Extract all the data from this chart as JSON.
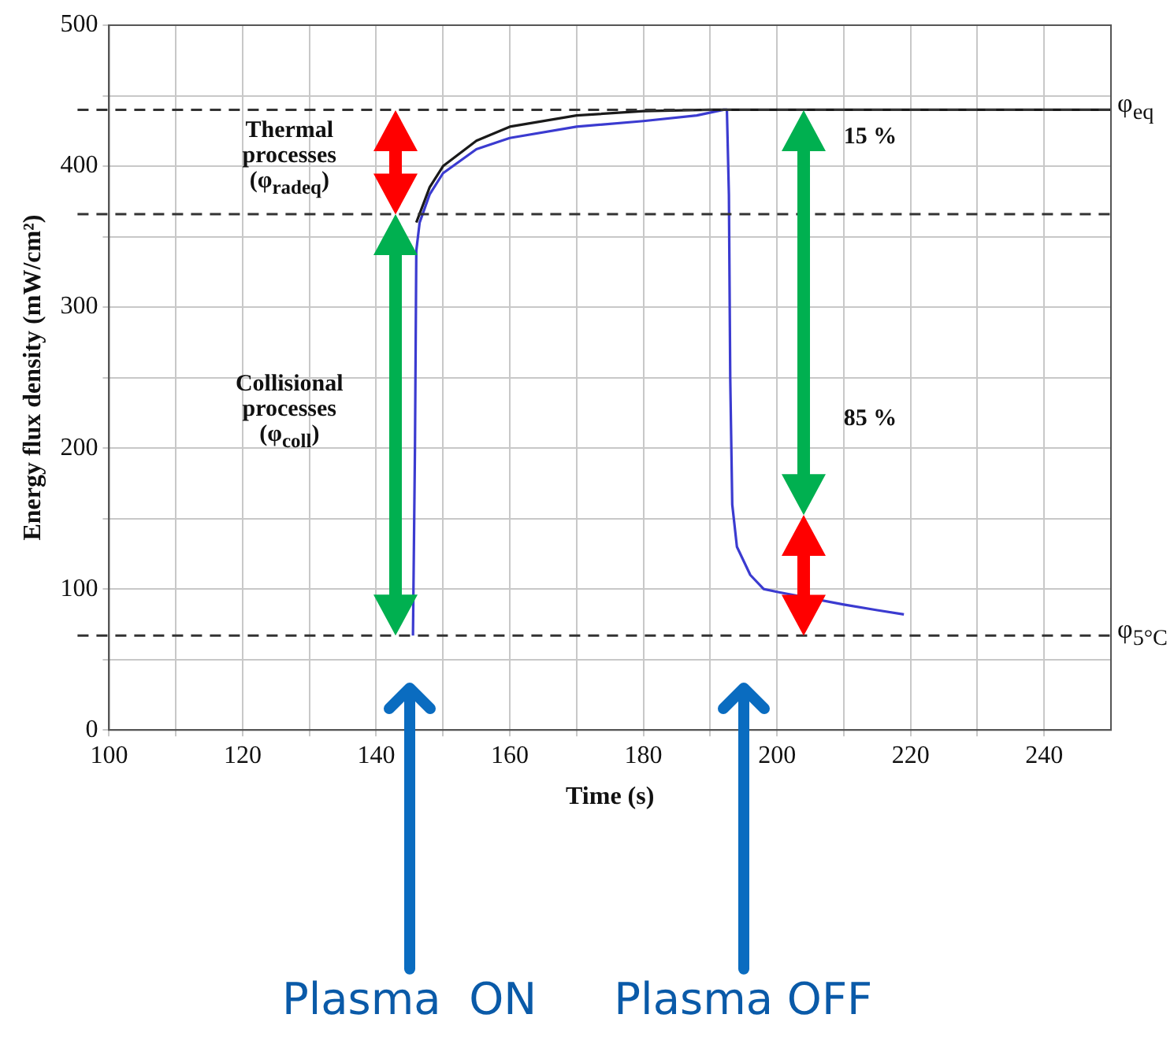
{
  "chart_data": {
    "type": "line",
    "xlabel": "Time (s)",
    "ylabel": "Energy flux density (mW/cm²)",
    "xlim": [
      100,
      250
    ],
    "ylim": [
      0,
      500
    ],
    "xticks": [
      100,
      {
        "value": 110,
        "label": null
      },
      120,
      {
        "value": 130,
        "label": null
      },
      140,
      {
        "value": 150,
        "label": null
      },
      160,
      {
        "value": 170,
        "label": null
      },
      180,
      {
        "value": 190,
        "label": null
      },
      200,
      {
        "value": 210,
        "label": null
      },
      220,
      {
        "value": 230,
        "label": null
      },
      240
    ],
    "yticks": [
      0,
      {
        "value": 50,
        "label": null
      },
      100,
      {
        "value": 150,
        "label": null
      },
      200,
      {
        "value": 250,
        "label": null
      },
      300,
      {
        "value": 350,
        "label": null
      },
      400,
      {
        "value": 450,
        "label": null
      },
      500
    ],
    "grid": true,
    "legend": false,
    "marker": "none",
    "line_style": "solid",
    "series": [
      {
        "color": "#1a1a1a",
        "x": [
          146,
          148,
          150,
          155,
          160,
          170,
          180,
          190,
          250
        ],
        "values": [
          360,
          385,
          400,
          418,
          428,
          436,
          439,
          440,
          440
        ]
      },
      {
        "color": "#3b3bd0",
        "x": [
          145.5,
          145.8,
          146,
          146.5,
          148,
          150,
          155,
          160,
          170,
          180,
          188,
          192,
          192.5,
          192.8,
          193,
          193.3,
          194,
          196,
          198,
          200,
          210,
          215,
          219
        ],
        "values": [
          67,
          200,
          340,
          360,
          380,
          395,
          412,
          420,
          428,
          432,
          436,
          440,
          440,
          380,
          250,
          160,
          130,
          110,
          100,
          98,
          89,
          85,
          82
        ]
      }
    ],
    "ref_lines": [
      {
        "axis": "y",
        "value": 440,
        "label": "φ$_{eq}$",
        "line_style": "dashed",
        "color": "#333333"
      },
      {
        "axis": "y",
        "value": 366,
        "label": null,
        "line_style": "dashed",
        "color": "#333333"
      },
      {
        "axis": "y",
        "value": 67,
        "label": "φ$_{5°C}$",
        "line_style": "dashed",
        "color": "#333333"
      }
    ],
    "annotations": [
      "Thermal processes (φ$_{radeq}$)",
      "Collisional processes (φ$_{coll}$)",
      "15 %",
      "85 %",
      "Plasma  ON",
      "Plasma OFF"
    ]
  }
}
